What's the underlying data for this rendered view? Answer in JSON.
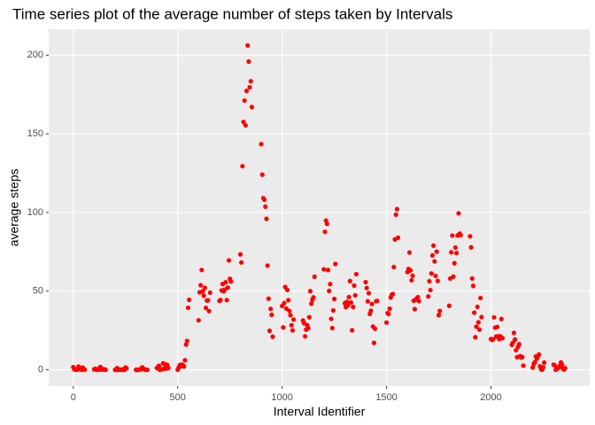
{
  "chart_data": {
    "type": "scatter",
    "title": "Time series plot of the average number of steps taken by Intervals",
    "x_label": "Interval Identifier",
    "y_label": "average steps",
    "color": "#ff0000",
    "grid": true,
    "xlim": [
      -117.75,
      2472.75
    ],
    "xticks": [
      0,
      500,
      1000,
      1500,
      2000
    ],
    "ylim": [
      -10.31,
      216.48
    ],
    "yticks": [
      0,
      50,
      100,
      150,
      200
    ],
    "x": [
      0,
      5,
      10,
      15,
      20,
      25,
      30,
      35,
      40,
      45,
      50,
      55,
      100,
      105,
      110,
      115,
      120,
      125,
      130,
      135,
      140,
      145,
      150,
      155,
      200,
      205,
      210,
      215,
      220,
      225,
      230,
      235,
      240,
      245,
      250,
      255,
      300,
      305,
      310,
      315,
      320,
      325,
      330,
      335,
      340,
      345,
      350,
      355,
      400,
      405,
      410,
      415,
      420,
      425,
      430,
      435,
      440,
      445,
      450,
      455,
      500,
      505,
      510,
      515,
      520,
      525,
      530,
      535,
      540,
      545,
      550,
      555,
      600,
      605,
      610,
      615,
      620,
      625,
      630,
      635,
      640,
      645,
      650,
      655,
      700,
      705,
      710,
      715,
      720,
      725,
      730,
      735,
      740,
      745,
      750,
      755,
      800,
      805,
      810,
      815,
      820,
      825,
      830,
      835,
      840,
      845,
      850,
      855,
      900,
      905,
      910,
      915,
      920,
      925,
      930,
      935,
      940,
      945,
      950,
      955,
      1000,
      1005,
      1010,
      1015,
      1020,
      1025,
      1030,
      1035,
      1040,
      1045,
      1050,
      1055,
      1100,
      1105,
      1110,
      1115,
      1120,
      1125,
      1130,
      1135,
      1140,
      1145,
      1150,
      1155,
      1200,
      1205,
      1210,
      1215,
      1220,
      1225,
      1230,
      1235,
      1240,
      1245,
      1250,
      1255,
      1300,
      1305,
      1310,
      1315,
      1320,
      1325,
      1330,
      1335,
      1340,
      1345,
      1350,
      1355,
      1400,
      1405,
      1410,
      1415,
      1420,
      1425,
      1430,
      1435,
      1440,
      1445,
      1450,
      1455,
      1500,
      1505,
      1510,
      1515,
      1520,
      1525,
      1530,
      1535,
      1540,
      1545,
      1550,
      1555,
      1600,
      1605,
      1610,
      1615,
      1620,
      1625,
      1630,
      1635,
      1640,
      1645,
      1650,
      1655,
      1700,
      1705,
      1710,
      1715,
      1720,
      1725,
      1730,
      1735,
      1740,
      1745,
      1750,
      1755,
      1800,
      1805,
      1810,
      1815,
      1820,
      1825,
      1830,
      1835,
      1840,
      1845,
      1850,
      1855,
      1900,
      1905,
      1910,
      1915,
      1920,
      1925,
      1930,
      1935,
      1940,
      1945,
      1950,
      1955,
      2000,
      2005,
      2010,
      2015,
      2020,
      2025,
      2030,
      2035,
      2040,
      2045,
      2050,
      2055,
      2100,
      2105,
      2110,
      2115,
      2120,
      2125,
      2130,
      2135,
      2140,
      2145,
      2150,
      2155,
      2200,
      2205,
      2210,
      2215,
      2220,
      2225,
      2230,
      2235,
      2240,
      2245,
      2250,
      2255,
      2300,
      2305,
      2310,
      2315,
      2320,
      2325,
      2330,
      2335,
      2340,
      2345,
      2350,
      2355
    ],
    "values": [
      1.72,
      0.34,
      0.13,
      0.15,
      0.08,
      2.09,
      0.53,
      0.87,
      0,
      1.47,
      0.3,
      0.13,
      0.32,
      0.68,
      0.15,
      0.34,
      0,
      1.11,
      1.83,
      0.17,
      0.17,
      0.38,
      0.26,
      0,
      0,
      0,
      1.13,
      0,
      0,
      0.13,
      0,
      0.23,
      0,
      0,
      1.55,
      0.94,
      0,
      0,
      0,
      0,
      0.21,
      0.62,
      1.62,
      0.58,
      0.49,
      0.08,
      0,
      0,
      1.19,
      0.94,
      2.57,
      0,
      0.34,
      0.36,
      4.11,
      0.66,
      3.49,
      0.83,
      3.11,
      1.11,
      0,
      1.57,
      3,
      2.25,
      3.32,
      2.96,
      2.09,
      6.06,
      16.02,
      18.34,
      39.45,
      44.49,
      31.49,
      49.26,
      53.77,
      63.45,
      49.96,
      47.08,
      52.15,
      39.34,
      44.02,
      44.17,
      37.36,
      49.04,
      43.81,
      44.38,
      50.51,
      54.51,
      49.92,
      50.98,
      55.68,
      44.32,
      52.26,
      69.55,
      57.85,
      56.15,
      73.38,
      68.21,
      129.43,
      157.53,
      171.15,
      155.4,
      177.3,
      206.17,
      195.92,
      179.57,
      183.4,
      167.02,
      143.45,
      124.04,
      109.11,
      108.11,
      103.72,
      95.96,
      66.21,
      45.23,
      24.79,
      38.75,
      34.98,
      21.06,
      40.57,
      26.98,
      42.42,
      52.66,
      38.92,
      50.79,
      44.28,
      37.42,
      34.7,
      28.34,
      25.09,
      31.94,
      31.36,
      29.68,
      21.32,
      25.55,
      28.38,
      26.47,
      33.43,
      49.98,
      42.04,
      44.6,
      46.04,
      59.19,
      63.87,
      87.7,
      94.85,
      92.77,
      63.4,
      50.17,
      54.47,
      32.42,
      26.53,
      37.74,
      45.06,
      67.28,
      42.34,
      39.89,
      43.26,
      40.98,
      46.25,
      56.43,
      42.75,
      25.13,
      39.96,
      53.55,
      47.32,
      60.81,
      55.75,
      51.96,
      43.58,
      48.7,
      35.47,
      37.55,
      41.85,
      27.51,
      17.11,
      26.08,
      43.62,
      43.77,
      30.02,
      36.08,
      35.49,
      38.85,
      45.96,
      47.75,
      48.13,
      65.32,
      82.91,
      98.66,
      102.11,
      83.96,
      62.13,
      64.13,
      74.55,
      63.17,
      56.91,
      59.77,
      43.87,
      38.57,
      44.66,
      45.45,
      46.21,
      43.68,
      46.62,
      56.3,
      50.72,
      61.23,
      72.72,
      78.94,
      68.94,
      59.66,
      75.09,
      56.51,
      34.77,
      37.45,
      40.68,
      58.02,
      74.7,
      85.32,
      59.26,
      67.77,
      77.7,
      74.25,
      85.34,
      99.45,
      86.58,
      85.6,
      84.87,
      77.83,
      58.04,
      53.36,
      36.32,
      20.72,
      27.4,
      40.02,
      30.21,
      25.55,
      45.66,
      33.53,
      19.62,
      19.02,
      19.34,
      33.34,
      26.81,
      21.17,
      27.3,
      21.34,
      19.55,
      21.32,
      32.3,
      20.15,
      15.94,
      17.23,
      23.45,
      19.25,
      12.45,
      8.02,
      14.66,
      16.3,
      8.68,
      7.79,
      8.13,
      2.62,
      1.45,
      3.68,
      4.81,
      8.51,
      7.08,
      8.7,
      9.75,
      2.21,
      0.32,
      0.11,
      1.6,
      4.6,
      3.3,
      2.85,
      0,
      0.83,
      0.96,
      1.58,
      2.6,
      4.7,
      3.3,
      0.64,
      0.23,
      1.08
    ]
  }
}
